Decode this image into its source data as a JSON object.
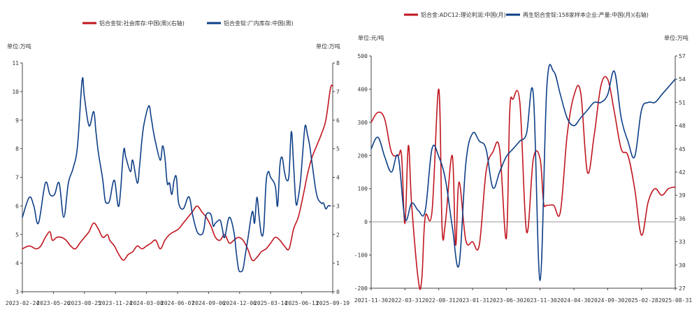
{
  "chart_data": [
    {
      "type": "line",
      "legend": [
        {
          "name": "铝合金锭:社会库存:中国(周)(右轴)",
          "color": "#c0161f"
        },
        {
          "name": "铝合金锭:厂内库存:中国(周)",
          "color": "#0e3f87"
        }
      ],
      "left_unit": "单位:万吨",
      "right_unit": "单位:万吨",
      "left_ylim": [
        3,
        11
      ],
      "left_ticks": [
        "3",
        "4",
        "5",
        "6",
        "7",
        "8",
        "9",
        "10",
        "11"
      ],
      "right_ylim": [
        0,
        8
      ],
      "right_ticks": [
        "0",
        "1",
        "2",
        "3",
        "4",
        "5",
        "6",
        "7",
        "8"
      ],
      "x_ticks": [
        "2023-02-24",
        "2023-05-26",
        "2023-08-25",
        "2023-11-24",
        "2024-03-08",
        "2024-06-07",
        "2024-09-06",
        "2024-12-06",
        "2025-03-14",
        "2025-06-13",
        "2025-09-19"
      ],
      "x_range": [
        0,
        135
      ],
      "series": [
        {
          "name": "铝合金锭:社会库存:中国(周)(右轴)",
          "axis": "right",
          "color": "#c0161f",
          "x": [
            0,
            3,
            6,
            8,
            10,
            12,
            13,
            15,
            17,
            19,
            21,
            23,
            25,
            27,
            29,
            31,
            33,
            35,
            37,
            38,
            40,
            42,
            44,
            46,
            48,
            50,
            52,
            54,
            56,
            58,
            60,
            62,
            64,
            66,
            68,
            70,
            72,
            74,
            76,
            78,
            80,
            82,
            84,
            86,
            88,
            90,
            92,
            94,
            96,
            98,
            100,
            102,
            104,
            106,
            108,
            110,
            112,
            114,
            116,
            118,
            120,
            122,
            124,
            126,
            128,
            130,
            132,
            134,
            135
          ],
          "values": [
            1.5,
            1.6,
            1.5,
            1.6,
            1.9,
            2.1,
            1.8,
            1.9,
            1.9,
            1.8,
            1.6,
            1.5,
            1.7,
            1.9,
            2.1,
            2.4,
            2.2,
            1.9,
            2.0,
            1.8,
            1.6,
            1.3,
            1.1,
            1.3,
            1.4,
            1.6,
            1.5,
            1.6,
            1.7,
            1.8,
            1.5,
            1.8,
            2.0,
            2.1,
            2.2,
            2.4,
            2.6,
            2.8,
            3.0,
            2.8,
            2.6,
            2.3,
            1.9,
            1.8,
            2.0,
            1.7,
            1.8,
            1.9,
            1.8,
            1.5,
            1.1,
            1.2,
            1.4,
            1.5,
            1.7,
            1.9,
            1.8,
            1.6,
            1.5,
            2.2,
            2.6,
            3.3,
            4.1,
            4.7,
            5.1,
            5.5,
            6.0,
            7.1,
            7.2
          ]
        },
        {
          "name": "铝合金锭:厂内库存:中国(周)",
          "axis": "left",
          "color": "#0e3f87",
          "x": [
            0,
            3,
            5,
            7,
            10,
            12,
            14,
            16,
            18,
            20,
            22,
            24,
            26,
            27,
            29,
            31,
            32,
            33,
            34,
            35,
            36,
            37,
            38,
            40,
            42,
            44,
            45,
            47,
            48,
            50,
            51,
            52,
            53,
            55,
            56,
            57,
            58,
            60,
            61,
            62,
            63,
            64,
            65,
            66,
            67,
            68,
            70,
            72,
            73,
            74,
            76,
            78,
            79,
            80,
            82,
            83,
            84,
            86,
            87,
            88,
            90,
            92,
            93,
            94,
            95,
            96,
            97,
            98,
            100,
            101,
            102,
            103,
            104,
            105,
            106,
            107,
            108,
            110,
            111,
            112,
            113,
            114,
            115,
            116,
            117,
            118,
            119,
            120,
            121,
            122,
            123,
            124,
            125,
            126,
            128,
            130,
            131,
            132,
            133,
            134
          ],
          "values": [
            5.6,
            6.3,
            6.0,
            5.4,
            6.8,
            6.4,
            6.4,
            6.8,
            5.6,
            6.8,
            7.3,
            8.1,
            10.4,
            9.8,
            8.8,
            9.3,
            8.6,
            7.9,
            7.4,
            6.9,
            6.2,
            6.1,
            6.2,
            6.9,
            6.0,
            7.9,
            7.7,
            7.2,
            7.6,
            6.8,
            7.4,
            8.3,
            8.9,
            9.5,
            9.1,
            8.6,
            8.2,
            7.6,
            8.1,
            7.7,
            6.8,
            6.8,
            6.4,
            6.9,
            7.0,
            6.1,
            5.9,
            6.3,
            6.2,
            5.7,
            5.1,
            5.0,
            5.2,
            5.7,
            5.7,
            5.3,
            5.4,
            5.5,
            5.2,
            4.9,
            5.6,
            5.1,
            4.4,
            3.8,
            3.7,
            3.8,
            4.3,
            4.8,
            5.8,
            5.4,
            6.3,
            5.6,
            5.0,
            5.2,
            6.8,
            7.2,
            7.0,
            6.7,
            6.0,
            7.4,
            7.7,
            7.2,
            6.9,
            7.1,
            8.6,
            7.4,
            6.1,
            6.3,
            6.9,
            7.9,
            8.8,
            8.5,
            8.1,
            7.5,
            6.4,
            6.1,
            6.1,
            5.9,
            6.0,
            6.0
          ]
        }
      ]
    },
    {
      "type": "line",
      "legend": [
        {
          "name": "铝合金:ADC12:理论利润:中国(月)",
          "color": "#c0161f"
        },
        {
          "name": "再生铝合金锭:158家样本企业:产量:中国(月)(右轴)",
          "color": "#0e3f87"
        }
      ],
      "left_unit": "单位:元/吨",
      "right_unit": "单位:万吨",
      "left_ylim": [
        -200,
        500
      ],
      "left_ticks": [
        "-200",
        "-100",
        "0",
        "100",
        "200",
        "300",
        "400",
        "500"
      ],
      "right_ylim": [
        27,
        57
      ],
      "right_ticks": [
        "27",
        "30",
        "33",
        "36",
        "39",
        "42",
        "45",
        "48",
        "51",
        "54",
        "57"
      ],
      "x_ticks": [
        "2021-11-30",
        "2022-03-31",
        "2022-08-31",
        "2023-01-31",
        "2023-06-30",
        "2023-11-30",
        "2024-04-30",
        "2024-09-30",
        "2025-02-28",
        "2025-08-31"
      ],
      "x_range": [
        0,
        45
      ],
      "series": [
        {
          "name": "铝合金:ADC12:理论利润:中国(月)",
          "axis": "left",
          "color": "#c0161f",
          "x": [
            0,
            1,
            2,
            3,
            4,
            4.5,
            5,
            5.5,
            6,
            7,
            7.5,
            8,
            9,
            10,
            10.5,
            11,
            12,
            12.5,
            13,
            14,
            15,
            16,
            17,
            18,
            19,
            20,
            20.5,
            21,
            22,
            23,
            24,
            25,
            25.5,
            26,
            27,
            28,
            29,
            30,
            31,
            32,
            33,
            34,
            35,
            36,
            37,
            38,
            39,
            40,
            41,
            42,
            43,
            44,
            45
          ],
          "values": [
            300,
            330,
            310,
            210,
            200,
            200,
            -5,
            230,
            50,
            -180,
            -170,
            15,
            30,
            400,
            -20,
            0,
            200,
            -70,
            120,
            -55,
            -60,
            -70,
            150,
            210,
            220,
            -50,
            330,
            370,
            360,
            -30,
            190,
            190,
            60,
            50,
            50,
            30,
            260,
            380,
            390,
            150,
            260,
            410,
            430,
            330,
            220,
            200,
            100,
            -40,
            60,
            100,
            80,
            100,
            105
          ]
        },
        {
          "name": "再生铝合金锭:158家样本企业:产量:中国(月)(右轴)",
          "axis": "right",
          "color": "#0e3f87",
          "x": [
            0,
            1,
            2,
            3,
            4,
            5,
            6,
            7,
            8,
            9,
            10,
            11,
            12,
            13,
            14,
            15,
            16,
            17,
            18,
            19,
            20,
            21,
            22,
            23,
            24,
            25,
            26,
            27,
            28,
            29,
            30,
            31,
            32,
            33,
            34,
            35,
            36,
            37,
            38,
            39,
            40,
            41,
            42,
            43,
            44,
            45
          ],
          "values": [
            45,
            46.5,
            44,
            42,
            44,
            36,
            38,
            37,
            37,
            45,
            44,
            41,
            35,
            30,
            43,
            47,
            46,
            45,
            40,
            42,
            44,
            45,
            46,
            47,
            52,
            28,
            53,
            55,
            52,
            49,
            48,
            49,
            50,
            51,
            51,
            52,
            55,
            49,
            46,
            44,
            50,
            51,
            51,
            52,
            53,
            54
          ]
        }
      ]
    }
  ]
}
